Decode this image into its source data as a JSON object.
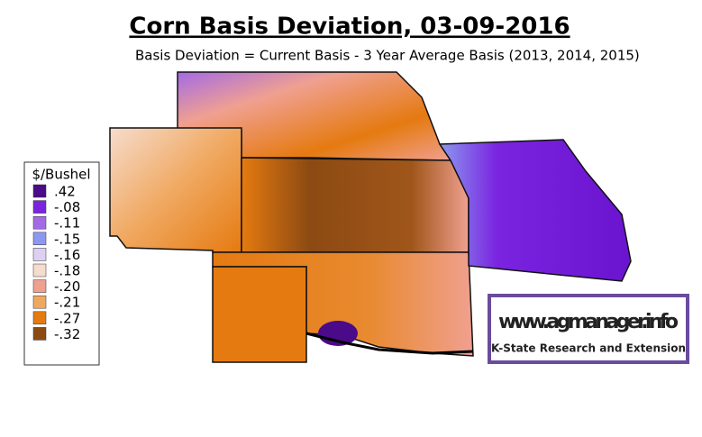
{
  "header": {
    "title": "Corn Basis Deviation, 03-09-2016",
    "subtitle": "Basis Deviation = Current Basis - 3 Year Average Basis (2013, 2014, 2015)"
  },
  "legend": {
    "title": "$/Bushel",
    "items": [
      {
        "label": ".42",
        "color": "#4a0a8a"
      },
      {
        "label": "-.08",
        "color": "#7a24e0"
      },
      {
        "label": "-.11",
        "color": "#a46ae6"
      },
      {
        "label": "-.15",
        "color": "#8c98f0"
      },
      {
        "label": "-.16",
        "color": "#ddd0f2"
      },
      {
        "label": "-.18",
        "color": "#f6dccc"
      },
      {
        "label": "-.20",
        "color": "#f0a090"
      },
      {
        "label": "-.21",
        "color": "#f0a860"
      },
      {
        "label": "-.27",
        "color": "#e57a10"
      },
      {
        "label": "-.32",
        "color": "#8c4a12"
      }
    ]
  },
  "logo": {
    "url": "www.agmanager.info",
    "org": "K-State Research and Extension"
  }
}
